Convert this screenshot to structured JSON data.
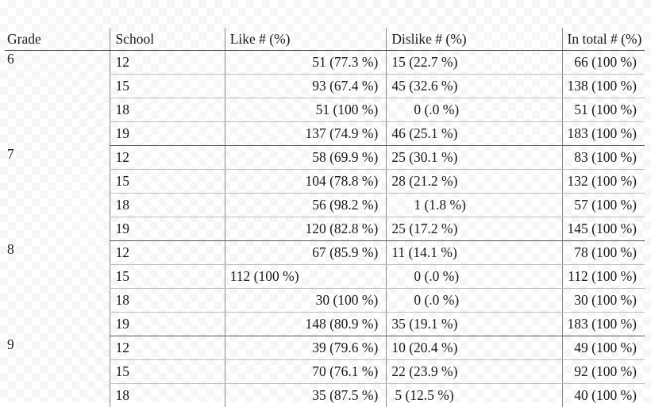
{
  "headers": [
    "Grade",
    "School",
    "Like # (%)",
    "Dislike # (%)",
    "In total # (%)"
  ],
  "groups": [
    {
      "grade": "6",
      "rows": [
        {
          "school": "12",
          "like": "51 (77.3 %)",
          "dislike": "15 (22.7 %)",
          "total": "66 (100 %)"
        },
        {
          "school": "15",
          "like": "93 (67.4 %)",
          "dislike": "45 (32.6 %)",
          "total": "138 (100 %)"
        },
        {
          "school": "18",
          "like": "51 (100 %)",
          "dislike": "0 (.0 %)",
          "total": "51 (100 %)"
        },
        {
          "school": "19",
          "like": "137 (74.9 %)",
          "dislike": "46 (25.1 %)",
          "total": "183 (100 %)"
        }
      ]
    },
    {
      "grade": "7",
      "rows": [
        {
          "school": "12",
          "like": "58 (69.9 %)",
          "dislike": "25 (30.1 %)",
          "total": "83 (100 %)"
        },
        {
          "school": "15",
          "like": "104 (78.8 %)",
          "dislike": "28 (21.2 %)",
          "total": "132 (100 %)"
        },
        {
          "school": "18",
          "like": "56 (98.2 %)",
          "dislike": "1 (1.8 %)",
          "total": "57 (100 %)"
        },
        {
          "school": "19",
          "like": "120 (82.8 %)",
          "dislike": "25 (17.2 %)",
          "total": "145 (100 %)"
        }
      ]
    },
    {
      "grade": "8",
      "rows": [
        {
          "school": "12",
          "like": "67 (85.9 %)",
          "dislike": "11 (14.1 %)",
          "total": "78 (100 %)"
        },
        {
          "school": "15",
          "like": "112 (100 %)",
          "dislike": "0 (.0 %)",
          "total": "112 (100 %)"
        },
        {
          "school": "18",
          "like": "30 (100 %)",
          "dislike": "0 (.0 %)",
          "total": "30 (100 %)"
        },
        {
          "school": "19",
          "like": "148 (80.9 %)",
          "dislike": "35 (19.1 %)",
          "total": "183 (100 %)"
        }
      ]
    },
    {
      "grade": "9",
      "rows": [
        {
          "school": "12",
          "like": "39 (79.6 %)",
          "dislike": "10 (20.4 %)",
          "total": "49 (100 %)"
        },
        {
          "school": "15",
          "like": "70 (76.1 %)",
          "dislike": "22 (23.9 %)",
          "total": "92 (100 %)"
        },
        {
          "school": "18",
          "like": "35 (87.5 %)",
          "dislike": "5 (12.5 %)",
          "total": "40 (100 %)"
        }
      ]
    }
  ]
}
